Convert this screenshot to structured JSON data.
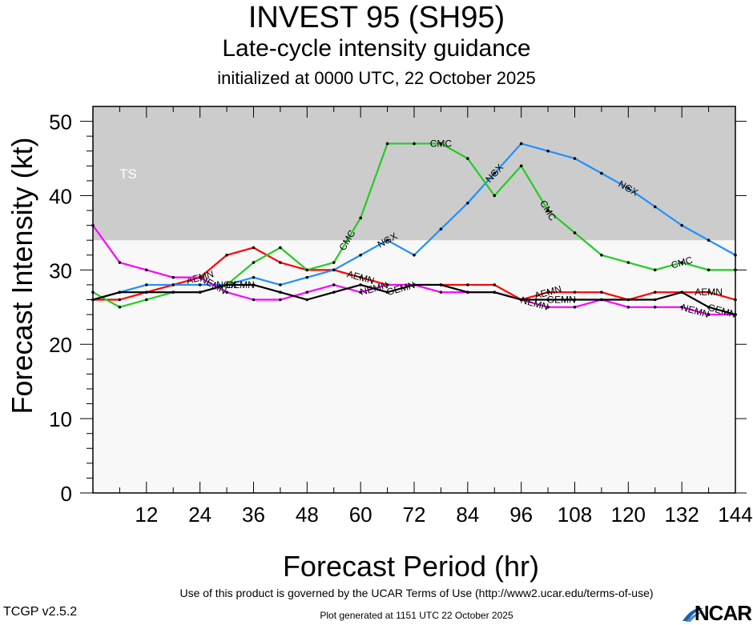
{
  "header": {
    "title": "INVEST 95 (SH95)",
    "subtitle": "Late-cycle intensity guidance",
    "init": "initialized at 0000 UTC, 22 October 2025"
  },
  "footer": {
    "terms": "Use of this product is governed by the UCAR Terms of Use (http://www2.ucar.edu/terms-of-use)",
    "generated": "Plot generated at 1151 UTC   22 October 2025",
    "version": "TCGP v2.5.2",
    "logo": "NCAR"
  },
  "chart_data": {
    "type": "line",
    "xlabel": "Forecast Period (hr)",
    "ylabel": "Forecast Intensity (kt)",
    "xlim": [
      0,
      144
    ],
    "ylim": [
      0,
      52
    ],
    "xticks": [
      12,
      24,
      36,
      48,
      60,
      72,
      84,
      96,
      108,
      120,
      132,
      144
    ],
    "yticks": [
      0,
      10,
      20,
      30,
      40,
      50
    ],
    "bands": [
      {
        "label": "TS",
        "from": 34,
        "to": 52,
        "color": "#cccccc"
      }
    ],
    "grid": false,
    "series": [
      {
        "name": "AEMN",
        "color": "#ff0000",
        "x": [
          0,
          6,
          12,
          18,
          24,
          30,
          36,
          42,
          48,
          54,
          60,
          66,
          72,
          78,
          84,
          90,
          96,
          102,
          108,
          114,
          120,
          126,
          132,
          138,
          144
        ],
        "y": [
          26,
          26,
          27,
          28,
          29,
          32,
          33,
          31,
          30,
          30,
          29,
          28,
          28,
          28,
          28,
          28,
          26,
          27,
          27,
          27,
          26,
          27,
          27,
          27,
          26
        ],
        "labels": [
          24,
          60,
          102,
          138
        ]
      },
      {
        "name": "NGX",
        "color": "#1e90ff",
        "x": [
          0,
          6,
          12,
          18,
          24,
          30,
          36,
          42,
          48,
          54,
          60,
          66,
          72,
          78,
          84,
          90,
          96,
          102,
          108,
          114,
          120,
          126,
          132,
          138,
          144
        ],
        "y": [
          26,
          27,
          28,
          28,
          28,
          28,
          29,
          28,
          29,
          30,
          32,
          34,
          32,
          35.5,
          39,
          43,
          47,
          46,
          45,
          43,
          41,
          38.5,
          36,
          34,
          32
        ],
        "labels": [
          30,
          66,
          90,
          120
        ]
      },
      {
        "name": "CMC",
        "color": "#22cc22",
        "x": [
          0,
          6,
          12,
          18,
          24,
          30,
          36,
          42,
          48,
          54,
          60,
          66,
          72,
          78,
          84,
          90,
          96,
          102,
          108,
          114,
          120,
          126,
          132,
          138,
          144
        ],
        "y": [
          27,
          25,
          26,
          27,
          27,
          28,
          31,
          33,
          30,
          31,
          37,
          47,
          47,
          47,
          45,
          40,
          44,
          38,
          35,
          32,
          31,
          30,
          31,
          30,
          30
        ],
        "labels": [
          57,
          78,
          102,
          132
        ]
      },
      {
        "name": "NEMN",
        "color": "#ff00ff",
        "x": [
          0,
          6,
          12,
          18,
          24,
          30,
          36,
          42,
          48,
          54,
          60,
          66,
          72,
          78,
          84,
          90,
          96,
          102,
          108,
          114,
          120,
          126,
          132,
          138,
          144
        ],
        "y": [
          36,
          31,
          30,
          29,
          29,
          27,
          26,
          26,
          27,
          28,
          27,
          28,
          28,
          27,
          27,
          27,
          26,
          25,
          25,
          26,
          25,
          25,
          25,
          24,
          24
        ],
        "labels": [
          27,
          63,
          99,
          135
        ]
      },
      {
        "name": "GEMN",
        "color": "#000000",
        "x": [
          0,
          6,
          12,
          18,
          24,
          30,
          36,
          42,
          48,
          54,
          60,
          66,
          72,
          78,
          84,
          90,
          96,
          102,
          108,
          114,
          120,
          126,
          132,
          138,
          144
        ],
        "y": [
          26,
          27,
          27,
          27,
          27,
          28,
          28,
          27,
          26,
          27,
          28,
          27,
          28,
          28,
          27,
          27,
          26,
          26,
          26,
          26,
          26,
          26,
          27,
          25,
          24
        ],
        "labels": [
          33,
          69,
          105,
          141
        ]
      }
    ]
  }
}
